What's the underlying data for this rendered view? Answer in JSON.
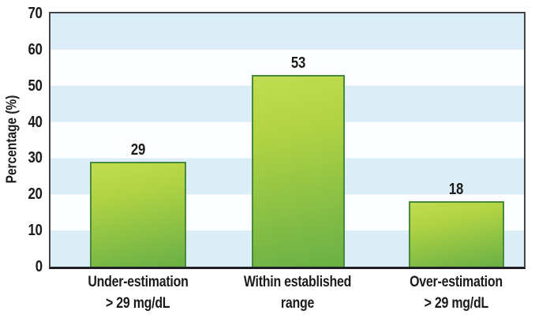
{
  "chart_data": {
    "type": "bar",
    "title": "",
    "ylabel": "Percentage (%)",
    "xlabel": "",
    "ylim": [
      0,
      70
    ],
    "yticks": [
      0,
      10,
      20,
      30,
      40,
      50,
      60,
      70
    ],
    "categories": [
      "Under-estimation > 29 mg/dL",
      "Within established range",
      "Over-estimation > 29 mg/dL"
    ],
    "category_lines": [
      [
        "Under-estimation",
        "> 29 mg/dL"
      ],
      [
        "Within established",
        "range"
      ],
      [
        "Over-estimation",
        "> 29 mg/dL"
      ]
    ],
    "values": [
      29,
      53,
      18
    ],
    "value_labels": [
      "29",
      "53",
      "18"
    ],
    "legend": "none",
    "grid": "horizontal-bands",
    "colors": {
      "bar_fill_top": "#b7d845",
      "bar_fill_bottom": "#6cb144",
      "bar_border": "#47893d",
      "band_blue": "#dbedf7",
      "band_white": "#fdfeff",
      "axis_border": "#43474c",
      "axis_bottom_border": "#1e2023",
      "text": "#1b1b1b"
    }
  }
}
